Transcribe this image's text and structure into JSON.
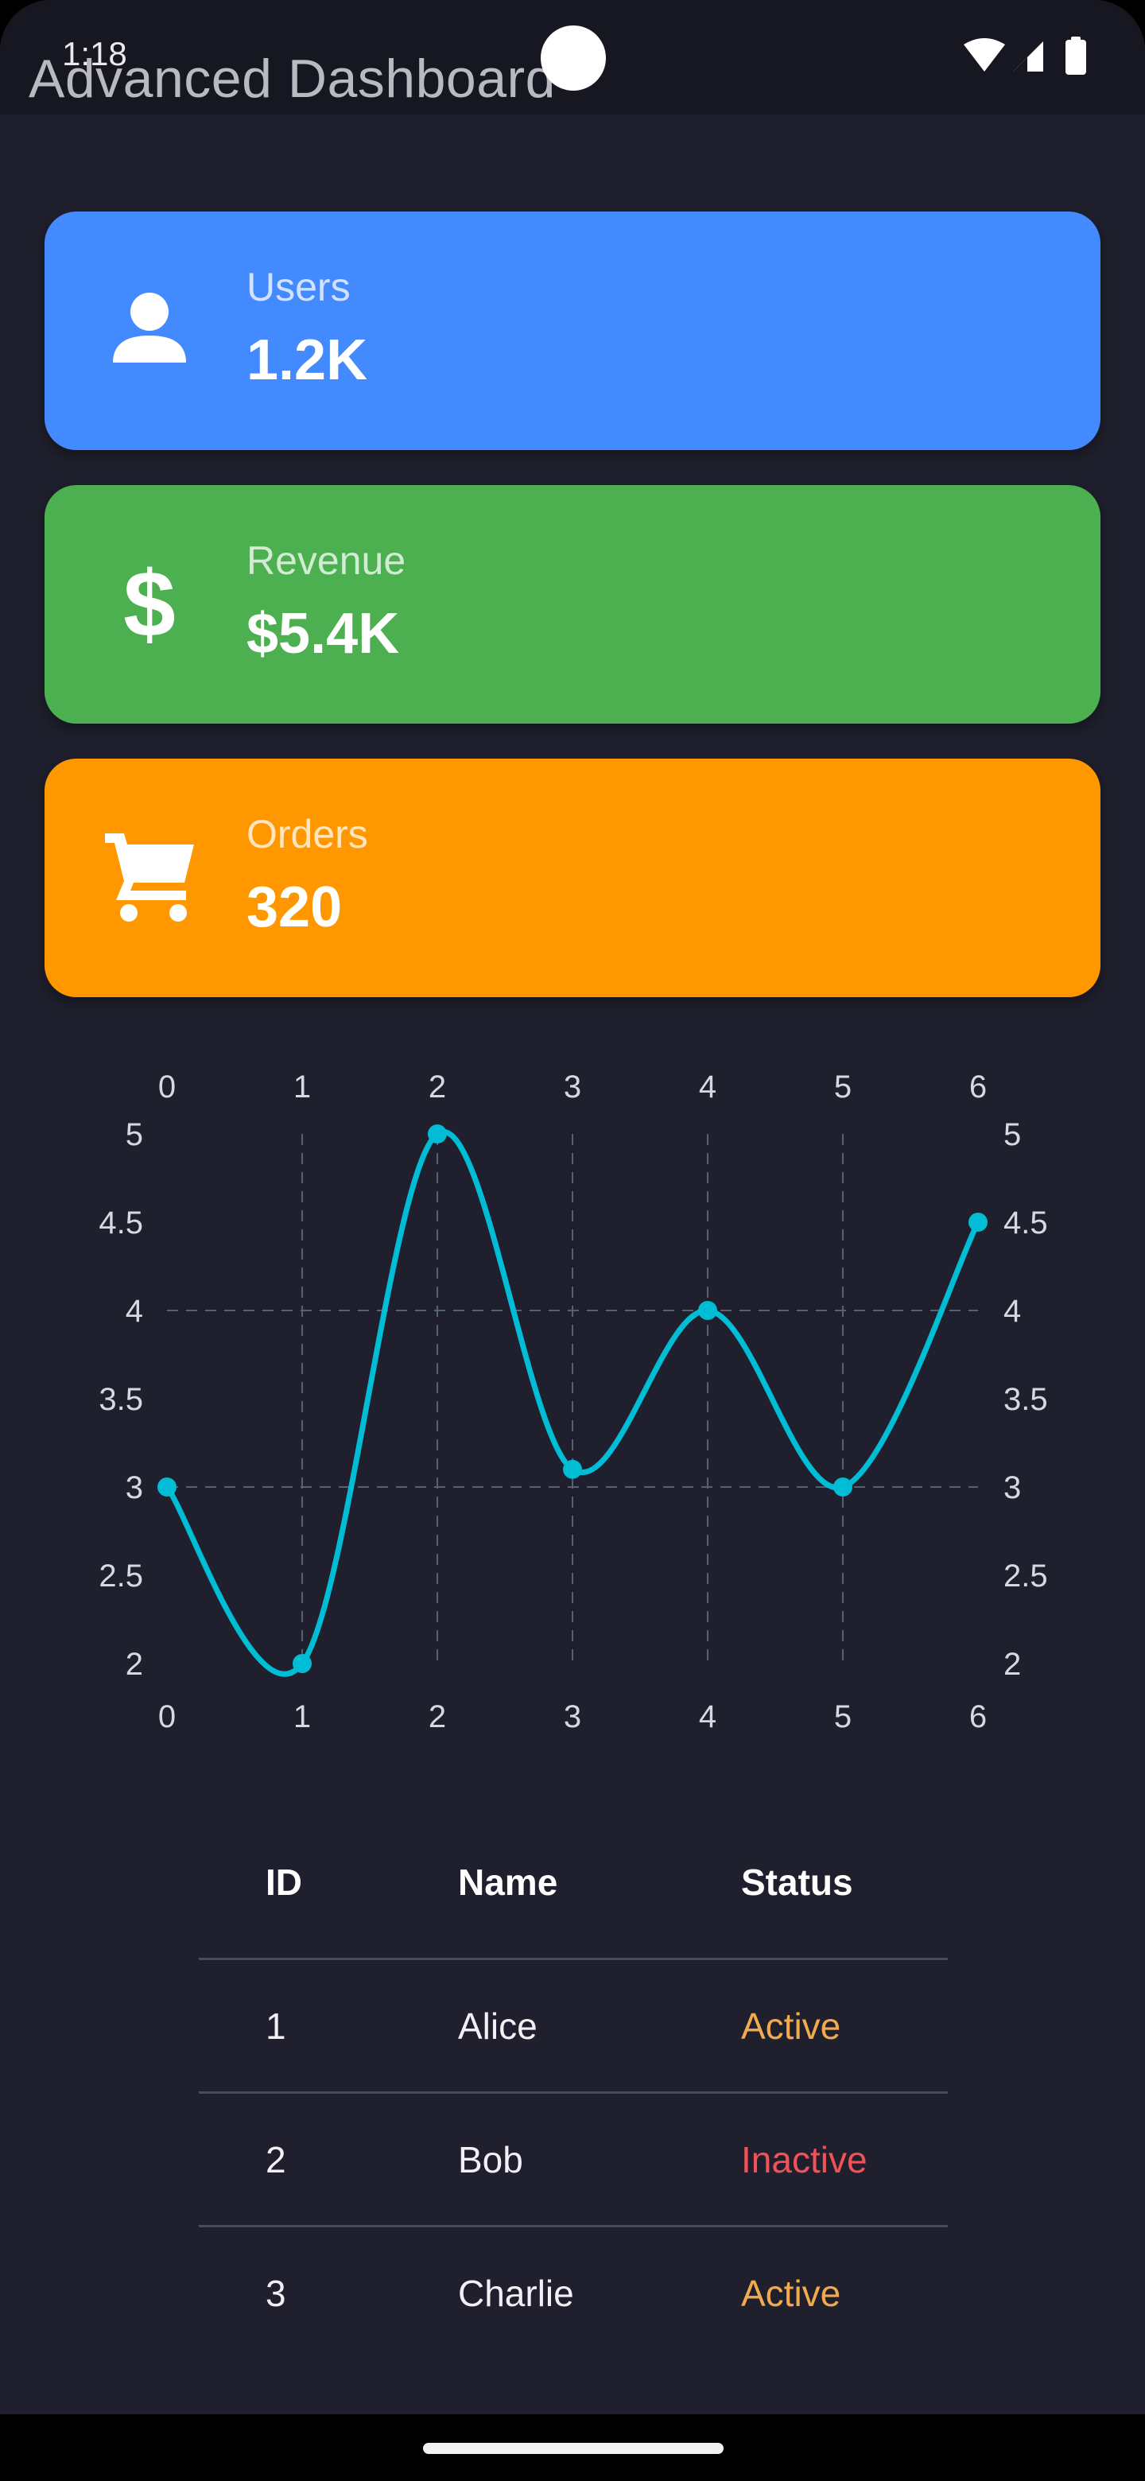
{
  "status_bar": {
    "time": "1:18"
  },
  "app": {
    "title": "Advanced Dashboard"
  },
  "cards": [
    {
      "label": "Users",
      "value": "1.2K",
      "icon": "person-icon",
      "color": "#448aff"
    },
    {
      "label": "Revenue",
      "value": "$5.4K",
      "icon": "dollar-icon",
      "color": "#4caf50"
    },
    {
      "label": "Orders",
      "value": "320",
      "icon": "cart-icon",
      "color": "#ff9800"
    }
  ],
  "chart_data": {
    "type": "line",
    "x": [
      0,
      1,
      2,
      3,
      4,
      5,
      6
    ],
    "series": [
      {
        "values": [
          3,
          2,
          5,
          3.1,
          4,
          3,
          4.5
        ],
        "color": "#00bcd4"
      }
    ],
    "xlim": [
      0,
      6
    ],
    "ylim": [
      2,
      5
    ],
    "x_ticks": [
      "0",
      "1",
      "2",
      "3",
      "4",
      "5",
      "6"
    ],
    "y_ticks": [
      "2",
      "2.5",
      "3",
      "3.5",
      "4",
      "4.5",
      "5"
    ],
    "curved": true,
    "grid": "dashed"
  },
  "table": {
    "headers": [
      "ID",
      "Name",
      "Status"
    ],
    "rows": [
      {
        "id": "1",
        "name": "Alice",
        "status": "Active",
        "status_color": "#f1ab4d"
      },
      {
        "id": "2",
        "name": "Bob",
        "status": "Inactive",
        "status_color": "#ef5357"
      },
      {
        "id": "3",
        "name": "Charlie",
        "status": "Active",
        "status_color": "#f1ab4d"
      }
    ]
  }
}
